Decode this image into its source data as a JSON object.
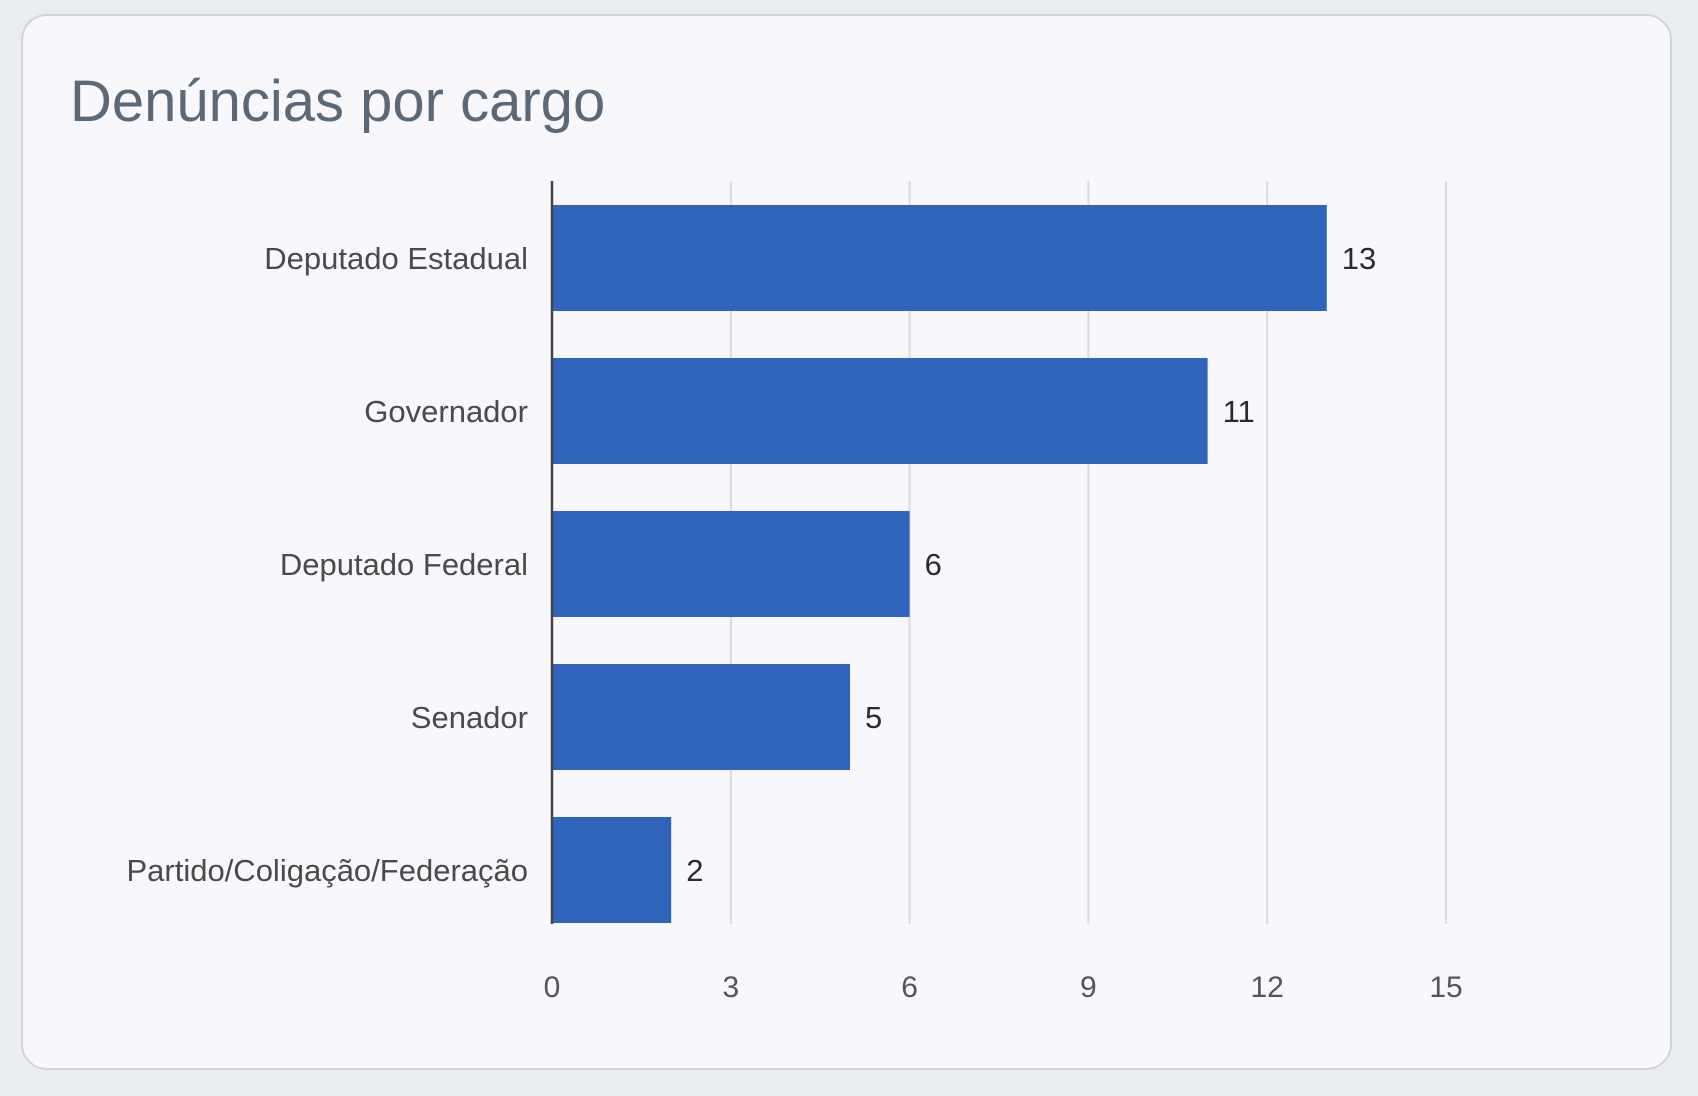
{
  "card": {
    "title": "Denúncias por cargo"
  },
  "chart_data": {
    "type": "bar",
    "orientation": "horizontal",
    "categories": [
      "Deputado Estadual",
      "Governador",
      "Deputado Federal",
      "Senador",
      "Partido/Coligação/Federação"
    ],
    "values": [
      13,
      11,
      6,
      5,
      2
    ],
    "xlim": [
      0,
      15
    ],
    "xticks": [
      "0",
      "3",
      "6",
      "9",
      "12",
      "15"
    ],
    "data_labels": [
      "13",
      "11",
      "6",
      "5",
      "2"
    ],
    "grid": "vertical",
    "colors": {
      "bar": "#3064bb",
      "grid": "#d9d9de",
      "axis": "#444444"
    }
  }
}
